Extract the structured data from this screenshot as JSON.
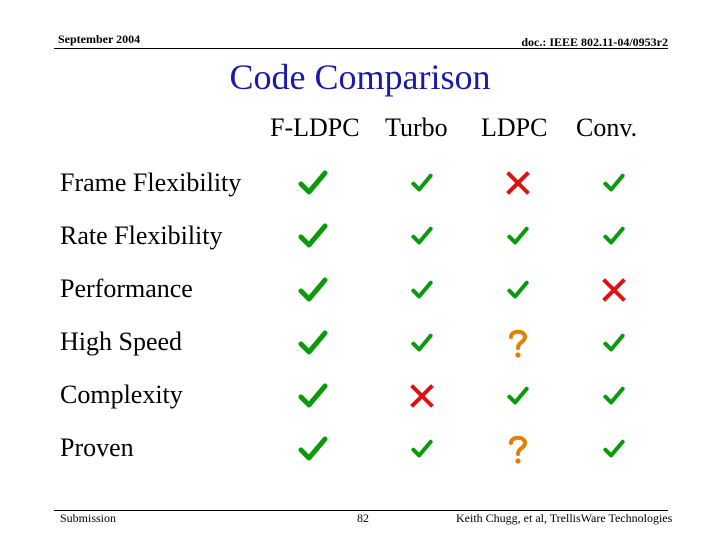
{
  "header": {
    "date": "September 2004",
    "doc_id": "doc.: IEEE 802.11-04/0953r2"
  },
  "slide": {
    "title": "Code Comparison",
    "columns": [
      "F-LDPC",
      "Turbo",
      "LDPC",
      "Conv."
    ],
    "rows": [
      {
        "label": "Frame Flexibility",
        "cells": [
          "check-large",
          "check",
          "cross",
          "check"
        ]
      },
      {
        "label": "Rate Flexibility",
        "cells": [
          "check-large",
          "check",
          "check",
          "check"
        ]
      },
      {
        "label": "Performance",
        "cells": [
          "check-large",
          "check",
          "check",
          "cross"
        ]
      },
      {
        "label": "High Speed",
        "cells": [
          "check-large",
          "check",
          "question",
          "check"
        ]
      },
      {
        "label": "Complexity",
        "cells": [
          "check-large",
          "cross",
          "check",
          "check"
        ]
      },
      {
        "label": "Proven",
        "cells": [
          "check-large",
          "check",
          "question",
          "check"
        ]
      }
    ]
  },
  "footer": {
    "left": "Submission",
    "page": "82",
    "right": "Keith Chugg, et al, TrellisWare Technologies"
  },
  "colors": {
    "title": "#1a1aa6",
    "check": "#0a9a0a",
    "cross": "#dd1111",
    "question": "#e67e00"
  }
}
